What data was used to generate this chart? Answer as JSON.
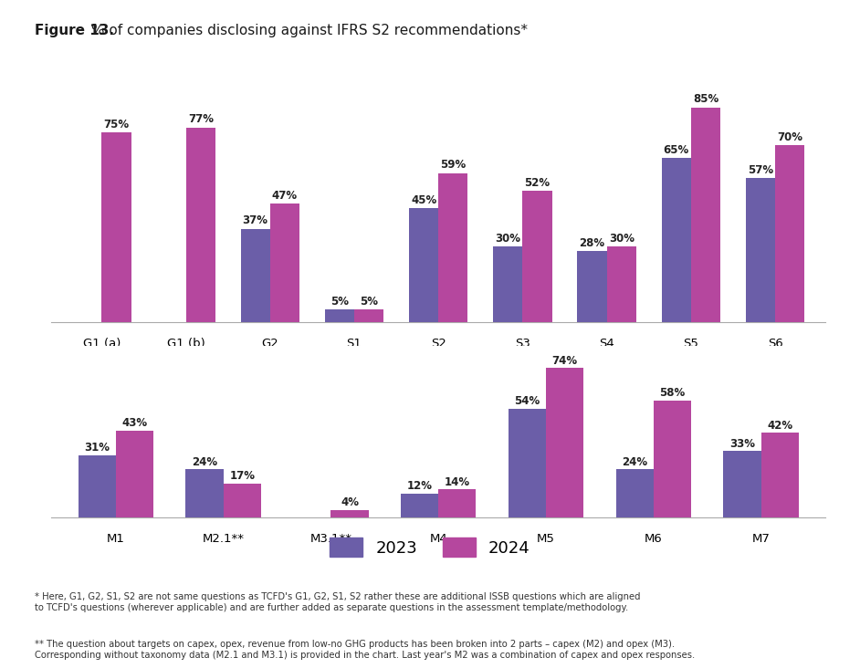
{
  "title": "Figure 13. % of companies disclosing against IFRS S2 recommendations*",
  "color_2023": "#6B5EA8",
  "color_2024": "#B5479E",
  "chart1": {
    "categories": [
      "G1 (a)",
      "G1 (b)",
      "G2",
      "S1",
      "S2",
      "S3",
      "S4",
      "S5",
      "S6"
    ],
    "values_2023": [
      null,
      null,
      37,
      5,
      45,
      30,
      28,
      65,
      57
    ],
    "values_2024": [
      75,
      77,
      47,
      5,
      59,
      52,
      30,
      85,
      70
    ]
  },
  "chart2": {
    "categories": [
      "M1",
      "M2.1**",
      "M3.1**",
      "M4",
      "M5",
      "M6",
      "M7"
    ],
    "values_2023": [
      31,
      24,
      null,
      12,
      54,
      24,
      33
    ],
    "values_2024": [
      43,
      17,
      4,
      14,
      74,
      58,
      42
    ]
  },
  "footnote1": "* Here, G1, G2, S1, S2 are not same questions as TCFD's G1, G2, S1, S2 rather these are additional ISSB questions which are aligned\nto TCFD's questions (wherever applicable) and are further added as separate questions in the assessment template/methodology.",
  "footnote2": "** The question about targets on capex, opex, revenue from low-no GHG products has been broken into 2 parts – capex (M2) and opex (M3).\nCorresponding without taxonomy data (M2.1 and M3.1) is provided in the chart. Last year's M2 was a combination of capex and opex responses.",
  "legend_2023": "2023",
  "legend_2024": "2024",
  "background_color": "#FFFFFF",
  "title_bold": "Figure 13.",
  "title_normal": " % of companies disclosing against IFRS S2 recommendations*"
}
